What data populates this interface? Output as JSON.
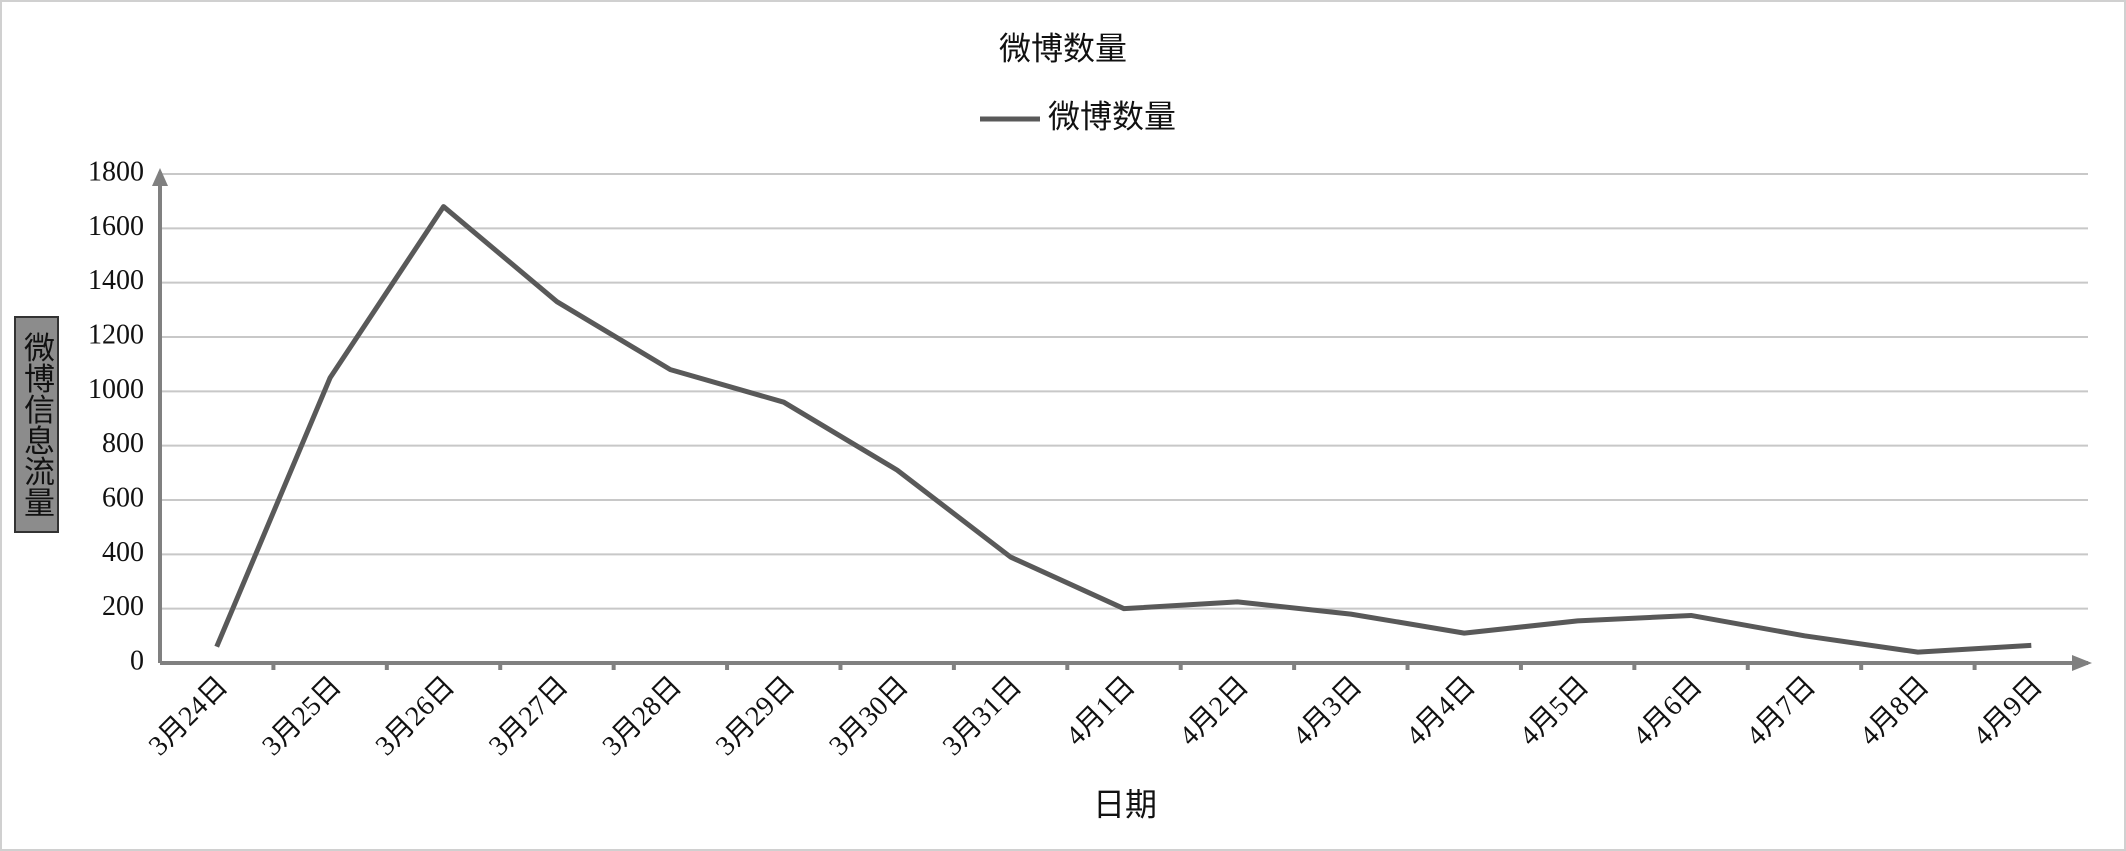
{
  "chart_data": {
    "type": "line",
    "title": "微博数量",
    "x_label": "日期",
    "y_label": "微博信息流量",
    "categories": [
      "3月24日",
      "3月25日",
      "3月26日",
      "3月27日",
      "3月28日",
      "3月29日",
      "3月30日",
      "3月31日",
      "4月1日",
      "4月2日",
      "4月3日",
      "4月4日",
      "4月5日",
      "4月6日",
      "4月7日",
      "4月8日",
      "4月9日"
    ],
    "series": [
      {
        "name": "微博数量",
        "color": "#595959",
        "values": [
          60,
          1050,
          1680,
          1330,
          1080,
          960,
          710,
          390,
          200,
          225,
          180,
          110,
          155,
          175,
          100,
          40,
          65
        ]
      }
    ],
    "ylim": [
      0,
      1800
    ],
    "yticks": [
      0,
      200,
      400,
      600,
      800,
      1000,
      1200,
      1400,
      1600,
      1800
    ],
    "grid": true,
    "legend": "top"
  }
}
